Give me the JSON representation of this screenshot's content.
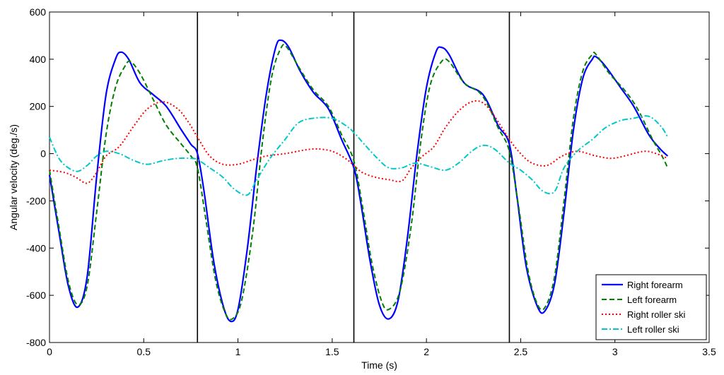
{
  "chart_data": {
    "type": "line",
    "title": "",
    "xlabel": "Time (s)",
    "ylabel": "Angular velocity (deg./s)",
    "xlim": [
      0,
      3.5
    ],
    "ylim": [
      -800,
      600
    ],
    "xticks": [
      0,
      0.5,
      1,
      1.5,
      2,
      2.5,
      3,
      3.5
    ],
    "xtick_labels": [
      "0",
      "0.5",
      "1",
      "1.5",
      "2",
      "2.5",
      "3",
      "3.5"
    ],
    "yticks": [
      -800,
      -600,
      -400,
      -200,
      0,
      200,
      400,
      600
    ],
    "ytick_labels": [
      "-800",
      "-600",
      "-400",
      "-200",
      "0",
      "200",
      "400",
      "600"
    ],
    "grid": false,
    "legend_position": "bottom-right",
    "vertical_lines": [
      0.785,
      1.615,
      2.44
    ],
    "series": [
      {
        "name": "Right forearm",
        "color": "#0000ff",
        "style": "solid",
        "points": [
          [
            0,
            -90
          ],
          [
            0.05,
            -330
          ],
          [
            0.1,
            -560
          ],
          [
            0.15,
            -650
          ],
          [
            0.2,
            -520
          ],
          [
            0.25,
            -100
          ],
          [
            0.3,
            250
          ],
          [
            0.35,
            400
          ],
          [
            0.38,
            430
          ],
          [
            0.42,
            400
          ],
          [
            0.48,
            300
          ],
          [
            0.55,
            250
          ],
          [
            0.62,
            200
          ],
          [
            0.7,
            100
          ],
          [
            0.75,
            40
          ],
          [
            0.785,
            0
          ],
          [
            0.82,
            -160
          ],
          [
            0.87,
            -450
          ],
          [
            0.92,
            -640
          ],
          [
            0.96,
            -710
          ],
          [
            1.0,
            -660
          ],
          [
            1.05,
            -400
          ],
          [
            1.1,
            -50
          ],
          [
            1.15,
            250
          ],
          [
            1.2,
            450
          ],
          [
            1.23,
            480
          ],
          [
            1.27,
            450
          ],
          [
            1.33,
            350
          ],
          [
            1.4,
            260
          ],
          [
            1.48,
            190
          ],
          [
            1.55,
            60
          ],
          [
            1.615,
            -60
          ],
          [
            1.65,
            -200
          ],
          [
            1.7,
            -450
          ],
          [
            1.75,
            -640
          ],
          [
            1.8,
            -700
          ],
          [
            1.85,
            -620
          ],
          [
            1.9,
            -350
          ],
          [
            1.95,
            0
          ],
          [
            2.0,
            280
          ],
          [
            2.05,
            430
          ],
          [
            2.08,
            450
          ],
          [
            2.12,
            420
          ],
          [
            2.2,
            300
          ],
          [
            2.3,
            250
          ],
          [
            2.38,
            120
          ],
          [
            2.44,
            40
          ],
          [
            2.48,
            -180
          ],
          [
            2.53,
            -480
          ],
          [
            2.59,
            -650
          ],
          [
            2.63,
            -665
          ],
          [
            2.68,
            -550
          ],
          [
            2.73,
            -250
          ],
          [
            2.78,
            100
          ],
          [
            2.83,
            320
          ],
          [
            2.88,
            400
          ],
          [
            2.9,
            410
          ],
          [
            2.95,
            370
          ],
          [
            3.03,
            280
          ],
          [
            3.1,
            200
          ],
          [
            3.18,
            80
          ],
          [
            3.24,
            20
          ],
          [
            3.28,
            -10
          ]
        ]
      },
      {
        "name": "Left forearm",
        "color": "#008000",
        "style": "dashed",
        "points": [
          [
            0,
            -70
          ],
          [
            0.05,
            -310
          ],
          [
            0.1,
            -540
          ],
          [
            0.15,
            -640
          ],
          [
            0.2,
            -560
          ],
          [
            0.25,
            -250
          ],
          [
            0.3,
            80
          ],
          [
            0.35,
            280
          ],
          [
            0.4,
            370
          ],
          [
            0.43,
            390
          ],
          [
            0.48,
            340
          ],
          [
            0.55,
            230
          ],
          [
            0.62,
            120
          ],
          [
            0.7,
            40
          ],
          [
            0.75,
            -10
          ],
          [
            0.785,
            -60
          ],
          [
            0.83,
            -280
          ],
          [
            0.88,
            -530
          ],
          [
            0.93,
            -670
          ],
          [
            0.97,
            -700
          ],
          [
            1.02,
            -620
          ],
          [
            1.08,
            -320
          ],
          [
            1.13,
            50
          ],
          [
            1.18,
            330
          ],
          [
            1.23,
            450
          ],
          [
            1.26,
            450
          ],
          [
            1.32,
            370
          ],
          [
            1.4,
            270
          ],
          [
            1.48,
            200
          ],
          [
            1.55,
            80
          ],
          [
            1.615,
            -30
          ],
          [
            1.66,
            -220
          ],
          [
            1.71,
            -460
          ],
          [
            1.76,
            -620
          ],
          [
            1.8,
            -660
          ],
          [
            1.86,
            -580
          ],
          [
            1.92,
            -300
          ],
          [
            1.97,
            50
          ],
          [
            2.02,
            290
          ],
          [
            2.08,
            390
          ],
          [
            2.12,
            390
          ],
          [
            2.2,
            300
          ],
          [
            2.28,
            260
          ],
          [
            2.33,
            200
          ],
          [
            2.38,
            110
          ],
          [
            2.44,
            10
          ],
          [
            2.49,
            -230
          ],
          [
            2.54,
            -500
          ],
          [
            2.59,
            -640
          ],
          [
            2.63,
            -650
          ],
          [
            2.68,
            -520
          ],
          [
            2.73,
            -200
          ],
          [
            2.78,
            150
          ],
          [
            2.83,
            350
          ],
          [
            2.88,
            420
          ],
          [
            2.9,
            420
          ],
          [
            2.97,
            340
          ],
          [
            3.05,
            270
          ],
          [
            3.12,
            190
          ],
          [
            3.2,
            60
          ],
          [
            3.25,
            -10
          ],
          [
            3.28,
            -60
          ]
        ]
      },
      {
        "name": "Right roller ski",
        "color": "#ff0000",
        "style": "dotted",
        "points": [
          [
            0,
            -70
          ],
          [
            0.08,
            -80
          ],
          [
            0.14,
            -100
          ],
          [
            0.2,
            -125
          ],
          [
            0.25,
            -80
          ],
          [
            0.3,
            -10
          ],
          [
            0.37,
            30
          ],
          [
            0.45,
            120
          ],
          [
            0.52,
            190
          ],
          [
            0.6,
            220
          ],
          [
            0.68,
            190
          ],
          [
            0.74,
            130
          ],
          [
            0.785,
            70
          ],
          [
            0.85,
            -10
          ],
          [
            0.92,
            -45
          ],
          [
            1.0,
            -45
          ],
          [
            1.08,
            -25
          ],
          [
            1.15,
            -10
          ],
          [
            1.25,
            0
          ],
          [
            1.35,
            15
          ],
          [
            1.42,
            20
          ],
          [
            1.5,
            10
          ],
          [
            1.57,
            -20
          ],
          [
            1.615,
            -50
          ],
          [
            1.66,
            -80
          ],
          [
            1.73,
            -100
          ],
          [
            1.8,
            -110
          ],
          [
            1.87,
            -115
          ],
          [
            1.92,
            -60
          ],
          [
            1.98,
            -10
          ],
          [
            2.04,
            30
          ],
          [
            2.1,
            110
          ],
          [
            2.17,
            180
          ],
          [
            2.24,
            220
          ],
          [
            2.3,
            215
          ],
          [
            2.36,
            160
          ],
          [
            2.44,
            60
          ],
          [
            2.5,
            0
          ],
          [
            2.56,
            -40
          ],
          [
            2.64,
            -50
          ],
          [
            2.72,
            -10
          ],
          [
            2.8,
            10
          ],
          [
            2.9,
            -10
          ],
          [
            2.98,
            -20
          ],
          [
            3.05,
            -10
          ],
          [
            3.12,
            5
          ],
          [
            3.17,
            10
          ],
          [
            3.22,
            0
          ],
          [
            3.28,
            -20
          ]
        ]
      },
      {
        "name": "Left roller ski",
        "color": "#00c8c8",
        "style": "dashdot",
        "points": [
          [
            0,
            70
          ],
          [
            0.05,
            -20
          ],
          [
            0.1,
            -60
          ],
          [
            0.15,
            -75
          ],
          [
            0.2,
            -50
          ],
          [
            0.25,
            -10
          ],
          [
            0.3,
            10
          ],
          [
            0.37,
            0
          ],
          [
            0.45,
            -30
          ],
          [
            0.52,
            -45
          ],
          [
            0.6,
            -30
          ],
          [
            0.68,
            -20
          ],
          [
            0.75,
            -20
          ],
          [
            0.785,
            -25
          ],
          [
            0.85,
            -60
          ],
          [
            0.92,
            -100
          ],
          [
            0.98,
            -150
          ],
          [
            1.05,
            -175
          ],
          [
            1.1,
            -110
          ],
          [
            1.17,
            -20
          ],
          [
            1.25,
            60
          ],
          [
            1.32,
            130
          ],
          [
            1.4,
            150
          ],
          [
            1.5,
            150
          ],
          [
            1.57,
            120
          ],
          [
            1.615,
            90
          ],
          [
            1.67,
            40
          ],
          [
            1.74,
            -20
          ],
          [
            1.8,
            -60
          ],
          [
            1.87,
            -60
          ],
          [
            1.94,
            -40
          ],
          [
            2.02,
            -55
          ],
          [
            2.1,
            -70
          ],
          [
            2.17,
            -40
          ],
          [
            2.24,
            10
          ],
          [
            2.3,
            35
          ],
          [
            2.36,
            20
          ],
          [
            2.44,
            -40
          ],
          [
            2.5,
            -70
          ],
          [
            2.56,
            -110
          ],
          [
            2.62,
            -160
          ],
          [
            2.68,
            -160
          ],
          [
            2.73,
            -60
          ],
          [
            2.8,
            10
          ],
          [
            2.88,
            60
          ],
          [
            2.95,
            110
          ],
          [
            3.03,
            140
          ],
          [
            3.1,
            150
          ],
          [
            3.16,
            160
          ],
          [
            3.2,
            150
          ],
          [
            3.25,
            110
          ],
          [
            3.28,
            70
          ]
        ]
      }
    ]
  }
}
